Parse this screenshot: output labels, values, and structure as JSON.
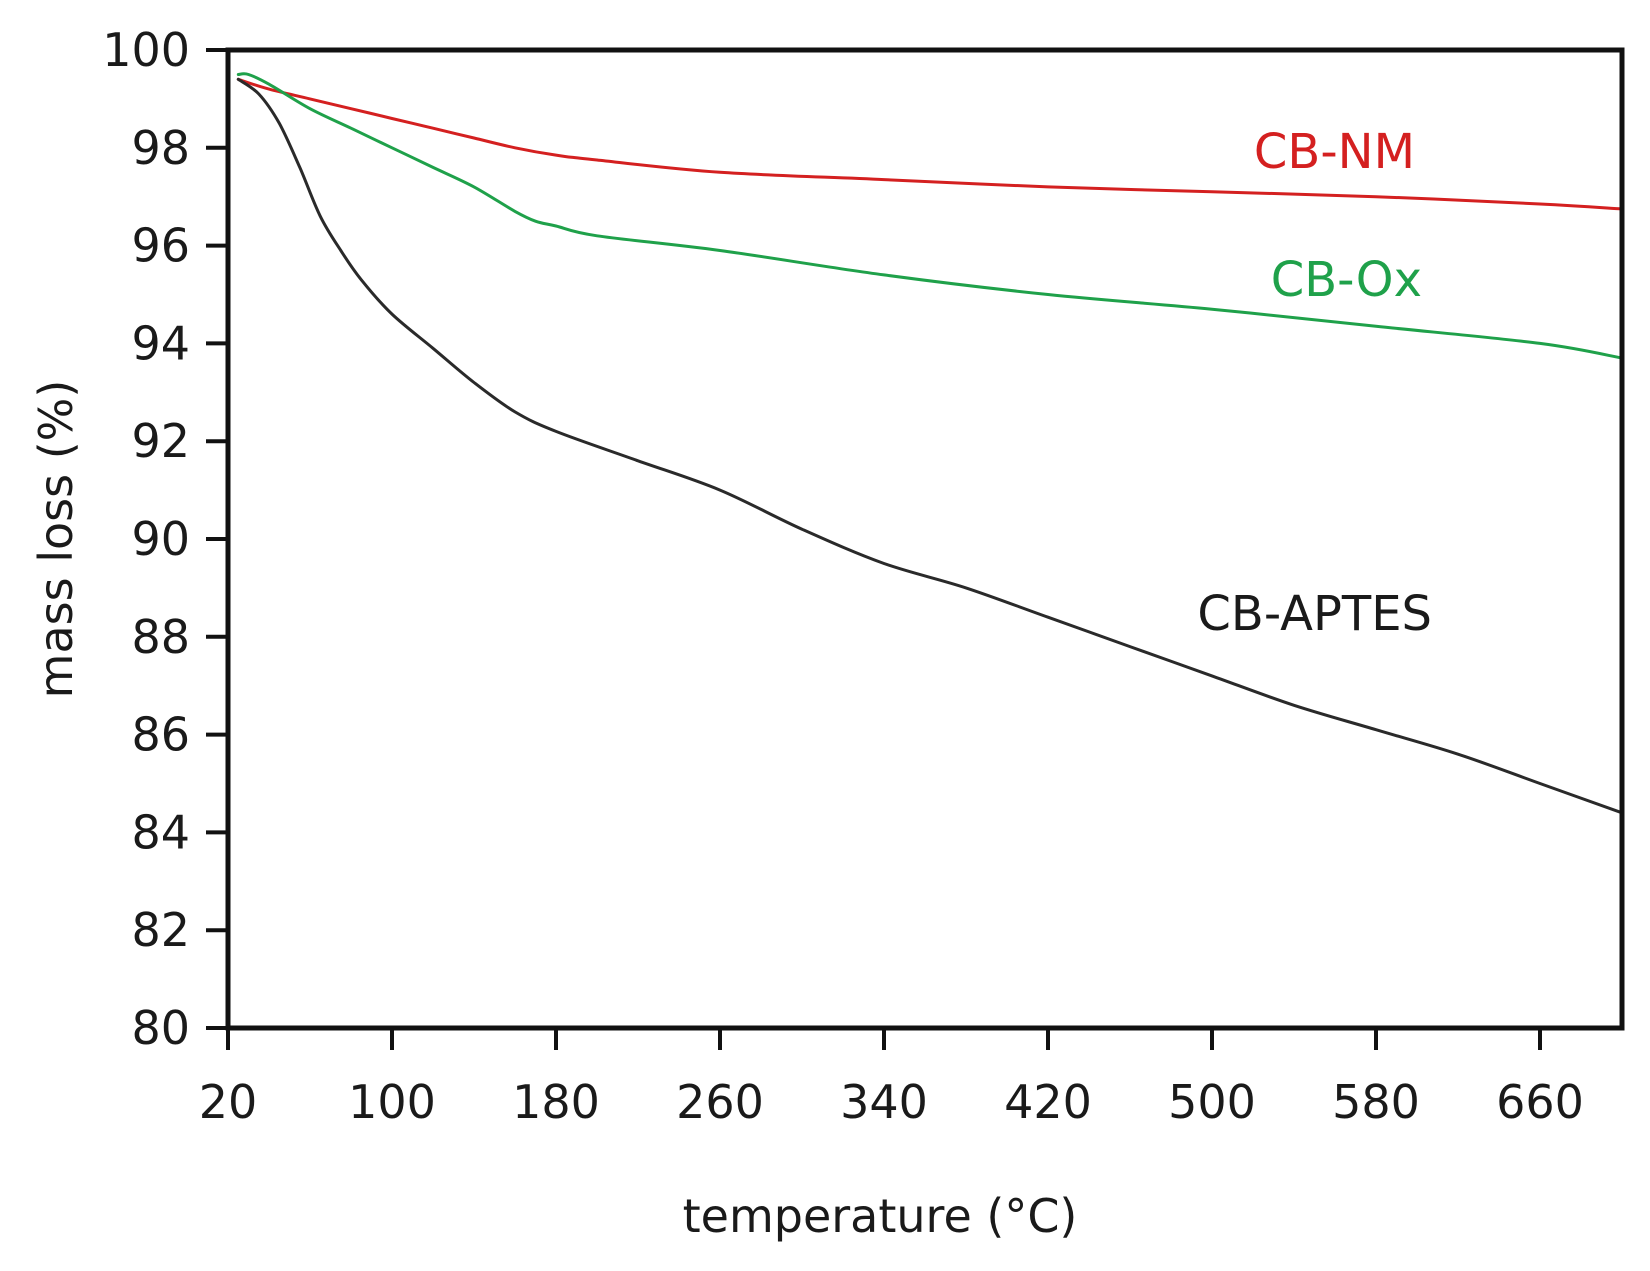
{
  "chart_data": {
    "type": "line",
    "title": "",
    "xlabel": "temperature (°C)",
    "ylabel": "mass loss (%)",
    "xlim": [
      20,
      700
    ],
    "ylim": [
      80,
      100
    ],
    "xticks": [
      20,
      100,
      180,
      260,
      340,
      420,
      500,
      580,
      660
    ],
    "yticks": [
      80,
      82,
      84,
      86,
      88,
      90,
      92,
      94,
      96,
      98,
      100
    ],
    "xtick_labels": [
      "20",
      "100",
      "180",
      "260",
      "340",
      "420",
      "500",
      "580",
      "660"
    ],
    "ytick_labels": [
      "80",
      "82",
      "84",
      "86",
      "88",
      "90",
      "92",
      "94",
      "96",
      "98",
      "100"
    ],
    "grid": false,
    "legend": "inline labels",
    "series": [
      {
        "name": "CB-NM",
        "color": "#d42020",
        "x": [
          25,
          40,
          60,
          80,
          100,
          120,
          140,
          160,
          180,
          200,
          260,
          340,
          420,
          500,
          580,
          660,
          700
        ],
        "y": [
          99.4,
          99.2,
          99.0,
          98.8,
          98.6,
          98.4,
          98.2,
          98.0,
          97.85,
          97.75,
          97.5,
          97.35,
          97.2,
          97.1,
          97.0,
          96.85,
          96.75
        ]
      },
      {
        "name": "CB-Ox",
        "color": "#1fa14a",
        "x": [
          25,
          30,
          40,
          60,
          80,
          100,
          120,
          140,
          160,
          170,
          180,
          200,
          260,
          340,
          420,
          500,
          580,
          660,
          700
        ],
        "y": [
          99.5,
          99.5,
          99.3,
          98.8,
          98.4,
          98.0,
          97.6,
          97.2,
          96.7,
          96.5,
          96.4,
          96.2,
          95.9,
          95.4,
          95.0,
          94.7,
          94.35,
          94.0,
          93.7
        ]
      },
      {
        "name": "CB-APTES",
        "color": "#2a2a2a",
        "x": [
          25,
          35,
          45,
          55,
          65,
          75,
          85,
          100,
          120,
          140,
          160,
          180,
          220,
          260,
          300,
          340,
          380,
          420,
          460,
          500,
          540,
          580,
          620,
          660,
          700
        ],
        "y": [
          99.4,
          99.1,
          98.5,
          97.6,
          96.6,
          95.9,
          95.3,
          94.6,
          93.9,
          93.2,
          92.6,
          92.2,
          91.6,
          91.0,
          90.2,
          89.5,
          89.0,
          88.4,
          87.8,
          87.2,
          86.6,
          86.1,
          85.6,
          85.0,
          84.4
        ]
      }
    ]
  }
}
